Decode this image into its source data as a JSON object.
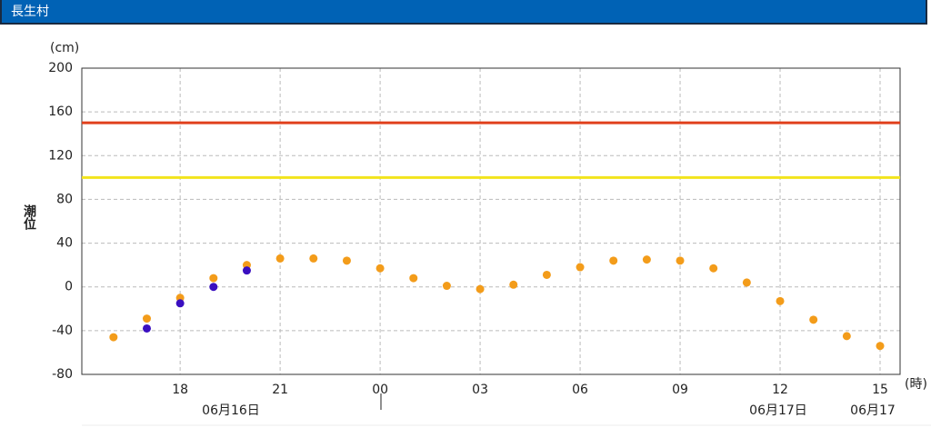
{
  "header": {
    "title": "長生村"
  },
  "chart_data": {
    "type": "scatter",
    "y_unit": "(cm)",
    "x_unit": "(時)",
    "y_label": "潮位",
    "x": [
      16,
      17,
      18,
      19,
      20,
      21,
      22,
      23,
      24,
      25,
      26,
      27,
      28,
      29,
      30,
      31,
      32,
      33,
      34,
      35,
      36,
      37,
      38,
      39
    ],
    "series": [
      {
        "color": "#f39c1a",
        "values": [
          -46,
          -29,
          -10,
          8,
          20,
          26,
          26,
          24,
          17,
          8,
          1,
          -2,
          2,
          11,
          18,
          24,
          25,
          24,
          17,
          4,
          -13,
          -30,
          -45,
          -54
        ]
      },
      {
        "color": "#3a0fc0",
        "values": [
          null,
          -38,
          -15,
          0,
          15,
          null,
          null,
          null,
          null,
          null,
          null,
          null,
          null,
          null,
          null,
          null,
          null,
          null,
          null,
          null,
          null,
          null,
          null,
          null
        ]
      }
    ],
    "thresholds": [
      {
        "value": 150,
        "color": "#e0401c"
      },
      {
        "value": 100,
        "color": "#f2e41c"
      }
    ],
    "xlim": [
      15.05,
      39.6
    ],
    "ylim": [
      -80,
      200
    ],
    "xticks": [
      {
        "value": 18,
        "label": "18"
      },
      {
        "value": 21,
        "label": "21"
      },
      {
        "value": 24,
        "label": "00"
      },
      {
        "value": 27,
        "label": "03"
      },
      {
        "value": 30,
        "label": "06"
      },
      {
        "value": 33,
        "label": "09"
      },
      {
        "value": 36,
        "label": "12"
      },
      {
        "value": 39,
        "label": "15"
      }
    ],
    "yticks": [
      -80,
      -40,
      0,
      40,
      80,
      120,
      160,
      200
    ],
    "date_labels": [
      "06月16日",
      "06月17日",
      "06月17"
    ],
    "grid": true
  }
}
